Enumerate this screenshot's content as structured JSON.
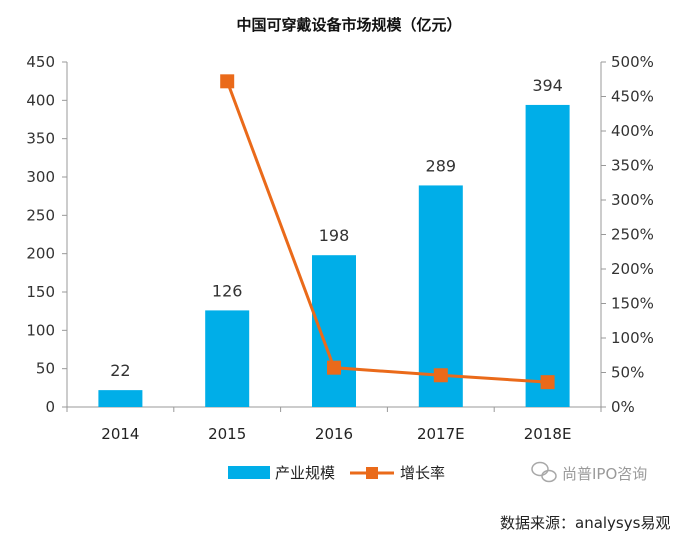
{
  "chart_data": {
    "type": "bar",
    "title": "中国可穿戴设备市场规模（亿元）",
    "categories": [
      "2014",
      "2015",
      "2016",
      "2017E",
      "2018E"
    ],
    "series": [
      {
        "name": "产业规模",
        "type": "bar",
        "axis": "left",
        "color": "#00aee8",
        "values": [
          22,
          126,
          198,
          289,
          394
        ]
      },
      {
        "name": "增长率",
        "type": "line",
        "axis": "right",
        "color": "#ea6a1a",
        "values": [
          null,
          4.72,
          0.57,
          0.46,
          0.36
        ]
      }
    ],
    "y_left": {
      "ylim": [
        0,
        450
      ],
      "ticks": [
        "0",
        "50",
        "100",
        "150",
        "200",
        "250",
        "300",
        "350",
        "400",
        "450"
      ]
    },
    "y_right": {
      "ylim": [
        0,
        5
      ],
      "ticks": [
        "0%",
        "50%",
        "100%",
        "150%",
        "200%",
        "250%",
        "300%",
        "350%",
        "400%",
        "450%",
        "500%"
      ]
    },
    "data_labels": [
      "22",
      "126",
      "198",
      "289",
      "394"
    ],
    "legend": {
      "placement": "bottom",
      "items": [
        "产业规模",
        "增长率"
      ]
    },
    "grid": false
  },
  "watermark": "尚普IPO咨询",
  "source": "数据来源：analysys易观",
  "icon": "wechat-icon"
}
